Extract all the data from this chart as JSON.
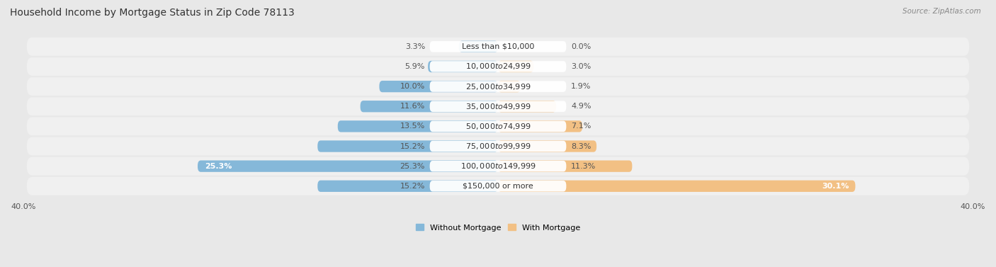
{
  "title": "Household Income by Mortgage Status in Zip Code 78113",
  "source": "Source: ZipAtlas.com",
  "categories": [
    "Less than $10,000",
    "$10,000 to $24,999",
    "$25,000 to $34,999",
    "$35,000 to $49,999",
    "$50,000 to $74,999",
    "$75,000 to $99,999",
    "$100,000 to $149,999",
    "$150,000 or more"
  ],
  "without_mortgage": [
    3.3,
    5.9,
    10.0,
    11.6,
    13.5,
    15.2,
    25.3,
    15.2
  ],
  "with_mortgage": [
    0.0,
    3.0,
    1.9,
    4.9,
    7.1,
    8.3,
    11.3,
    30.1
  ],
  "color_without": "#85B8D9",
  "color_with": "#F2C084",
  "axis_limit": 40.0,
  "bg_color": "#e8e8e8",
  "row_bg": "#f0f0f0",
  "title_fontsize": 10,
  "label_fontsize": 8,
  "source_fontsize": 7.5,
  "legend_fontsize": 8
}
